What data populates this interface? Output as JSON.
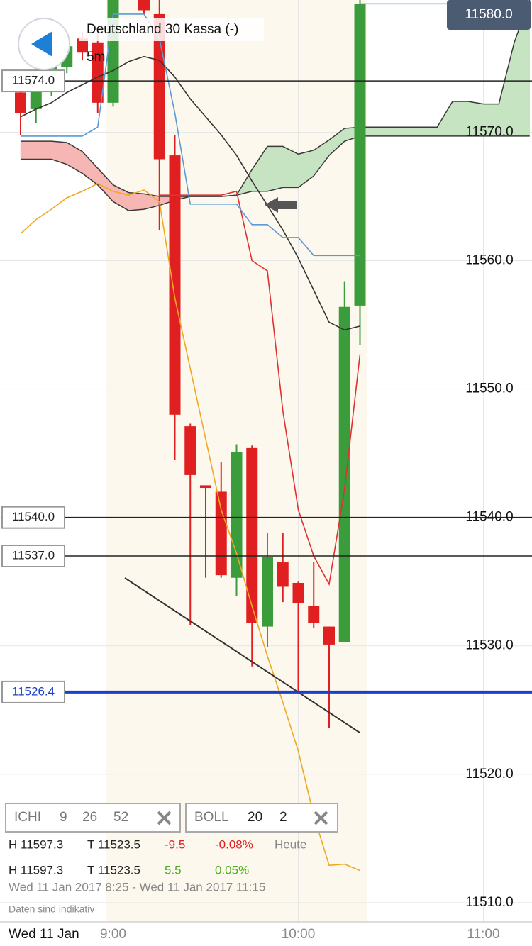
{
  "chart_data": {
    "type": "candlestick",
    "title": "Deutschland 30 Kassa (-)",
    "interval": "5m",
    "date_label": "Wed 11 Jan",
    "categories": [
      null,
      null,
      null,
      null,
      null,
      null,
      "9:00",
      null,
      null,
      null,
      null,
      null,
      null,
      null,
      null,
      null,
      null,
      null,
      "10:00",
      null,
      null,
      null,
      null,
      null,
      null,
      null,
      null,
      null,
      null,
      null,
      "11:00",
      null,
      null,
      null
    ],
    "open": [
      11573.1,
      11571.8,
      11573.4,
      11575.1,
      11577.3,
      11577.0,
      11572.3,
      null,
      11580.9,
      11579.2,
      11568.2,
      11547.1,
      11542.5,
      11542.0,
      11535.3,
      11545.4,
      11531.5,
      11536.5,
      11534.9,
      11533.1,
      11531.5,
      11530.3,
      11556.5,
      null,
      null,
      null,
      null,
      null,
      null,
      null,
      null,
      null,
      null,
      null
    ],
    "high": [
      11573.7,
      11575.4,
      11576.0,
      11577.2,
      11577.8,
      11578.1,
      11580.3,
      null,
      11581.0,
      11580.5,
      11569.8,
      11547.3,
      11542.5,
      11544.3,
      11545.7,
      11545.6,
      11538.8,
      11538.8,
      11535.0,
      11536.5,
      11531.5,
      11558.4,
      11580.3,
      null,
      null,
      null,
      null,
      null,
      null,
      null,
      null,
      null,
      null,
      null
    ],
    "low": [
      11569.8,
      11570.7,
      11572.8,
      11574.6,
      11575.6,
      11571.5,
      11572.0,
      null,
      11579.2,
      11562.4,
      11544.5,
      11531.6,
      11535.3,
      11535.3,
      11533.9,
      11528.4,
      11529.9,
      11533.4,
      11526.5,
      11531.4,
      11523.6,
      11530.3,
      11553.4,
      null,
      null,
      null,
      null,
      null,
      null,
      null,
      null,
      null,
      null,
      null
    ],
    "close": [
      11571.5,
      11574.8,
      11575.6,
      11576.7,
      11576.2,
      11572.3,
      11580.3,
      null,
      11579.5,
      11567.9,
      11548.0,
      11543.3,
      11542.3,
      11535.5,
      11545.1,
      11531.8,
      11536.9,
      11534.6,
      11533.3,
      11531.8,
      11530.1,
      11556.4,
      11580.0,
      null,
      null,
      null,
      null,
      null,
      null,
      null,
      null,
      null,
      null,
      null
    ],
    "up_color": "#3a9c3a",
    "down_color": "#e02020",
    "lines": [
      {
        "color": "#333333",
        "values": [
          11571.2,
          11571.8,
          11572.3,
          11573.1,
          11573.7,
          11574.3,
          11574.8,
          11575.5,
          11575.9,
          11575.6,
          11574.3,
          11572.6,
          11571.2,
          11569.8,
          11568.2,
          11566.2,
          11564.3,
          11562.4,
          11560.2,
          11557.7,
          11555.2,
          11554.6,
          11554.9,
          null,
          null,
          null,
          null,
          null,
          null,
          null,
          null,
          null,
          null,
          null
        ]
      },
      {
        "color": "#f0a820",
        "values": [
          11562.1,
          11563.2,
          11564.0,
          11564.9,
          11565.4,
          11566.0,
          11565.4,
          11565.1,
          11565.5,
          11564.6,
          11557.1,
          11551.6,
          11546.1,
          11540.6,
          11537.2,
          11533.1,
          11529.2,
          11525.6,
          11521.8,
          11516.8,
          11512.9,
          11513.0,
          11512.5,
          null,
          null,
          null,
          null,
          null,
          null,
          null,
          null,
          null,
          null,
          null
        ]
      },
      {
        "color": "#e03030",
        "values": [
          null,
          null,
          null,
          null,
          null,
          null,
          null,
          null,
          null,
          11565.1,
          11565.1,
          11565.1,
          11565.1,
          11565.1,
          11565.4,
          11560.0,
          11559.2,
          11548.3,
          11540.6,
          11537.0,
          11534.8,
          11542.2,
          11552.7,
          null,
          null,
          null,
          null,
          null,
          null,
          null,
          null,
          null,
          null,
          null
        ]
      },
      {
        "color": "#5a9ad8",
        "values": [
          11569.7,
          11569.7,
          11569.7,
          11569.7,
          11569.7,
          11570.4,
          11579.2,
          11579.2,
          11579.2,
          11577.3,
          11571.5,
          11564.4,
          11564.4,
          11564.4,
          11564.4,
          11562.8,
          11562.8,
          11561.8,
          11561.8,
          11560.4,
          11560.4,
          11560.4,
          11560.4,
          null,
          null,
          null,
          null,
          null,
          null,
          null,
          null,
          null,
          null,
          null
        ]
      }
    ],
    "cloud": {
      "span_a": [
        11567.9,
        11567.9,
        11567.9,
        11567.5,
        11566.8,
        11565.9,
        11564.6,
        11563.9,
        11564.0,
        11564.3,
        11564.7,
        11565.0,
        11565.0,
        11565.0,
        11565.1,
        11567.1,
        11568.9,
        11568.9,
        11568.3,
        11568.6,
        11569.4,
        11570.3,
        11570.4,
        11570.4,
        11570.4,
        11570.4,
        11570.4,
        11570.4,
        11572.4,
        11572.4,
        11572.2,
        11572.2,
        11577.0,
        11580.3
      ],
      "span_b": [
        11569.3,
        11569.3,
        11569.3,
        11569.2,
        11568.5,
        11567.2,
        11565.9,
        11565.3,
        11565.2,
        11565.0,
        11565.0,
        11565.0,
        11565.0,
        11565.0,
        11565.1,
        11565.4,
        11565.4,
        11565.7,
        11565.7,
        11566.6,
        11568.2,
        11569.3,
        11569.7,
        11569.7,
        11569.7,
        11569.7,
        11569.7,
        11569.7,
        11569.7,
        11569.7,
        11569.7,
        11569.7,
        11569.7,
        11569.7
      ],
      "up_color": "#c6e4c1",
      "down_color": "#f6b6b4",
      "edge_color": "#3a3a3a"
    },
    "levels": [
      {
        "value": 11574,
        "label": "11574.0",
        "color": "#222222"
      },
      {
        "value": 11540,
        "label": "11540.0",
        "color": "#222222"
      },
      {
        "value": 11537,
        "label": "11537.0",
        "color": "#222222"
      },
      {
        "value": 11526.4,
        "label": "11526.4",
        "color": "#1a3fc8",
        "highlight": true
      }
    ],
    "last_price": {
      "value": 11580,
      "label": "11580.0",
      "color": "#4a5b72"
    },
    "ylim": [
      11508.5,
      11580.3
    ],
    "yticks": [
      {
        "value": 11510,
        "label": "11510.0"
      },
      {
        "value": 11520,
        "label": "11520.0"
      },
      {
        "value": 11530,
        "label": "11530.0"
      },
      {
        "value": 11540,
        "label": "11540.0"
      },
      {
        "value": 11550,
        "label": "11550.0"
      },
      {
        "value": 11560,
        "label": "11560.0"
      },
      {
        "value": 11570,
        "label": "11570.0"
      }
    ],
    "grid": true
  },
  "indicators": [
    {
      "name": "ICHI",
      "params": [
        "9",
        "26",
        "52"
      ]
    },
    {
      "name": "BOLL",
      "params": [
        "20",
        "2"
      ]
    }
  ],
  "info": {
    "rows": [
      {
        "high": "H 11597.3",
        "low": "T 11523.5",
        "change": "-9.5",
        "percent": "-0.08%",
        "note": "Heute"
      },
      {
        "high": "H 11597.3",
        "low": "T 11523.5",
        "change": "5.5",
        "percent": "0.05%"
      }
    ],
    "range": "Wed 11 Jan 2017 8:25 - Wed 11 Jan 2017 11:15",
    "disclaimer": "Daten sind indikativ"
  }
}
